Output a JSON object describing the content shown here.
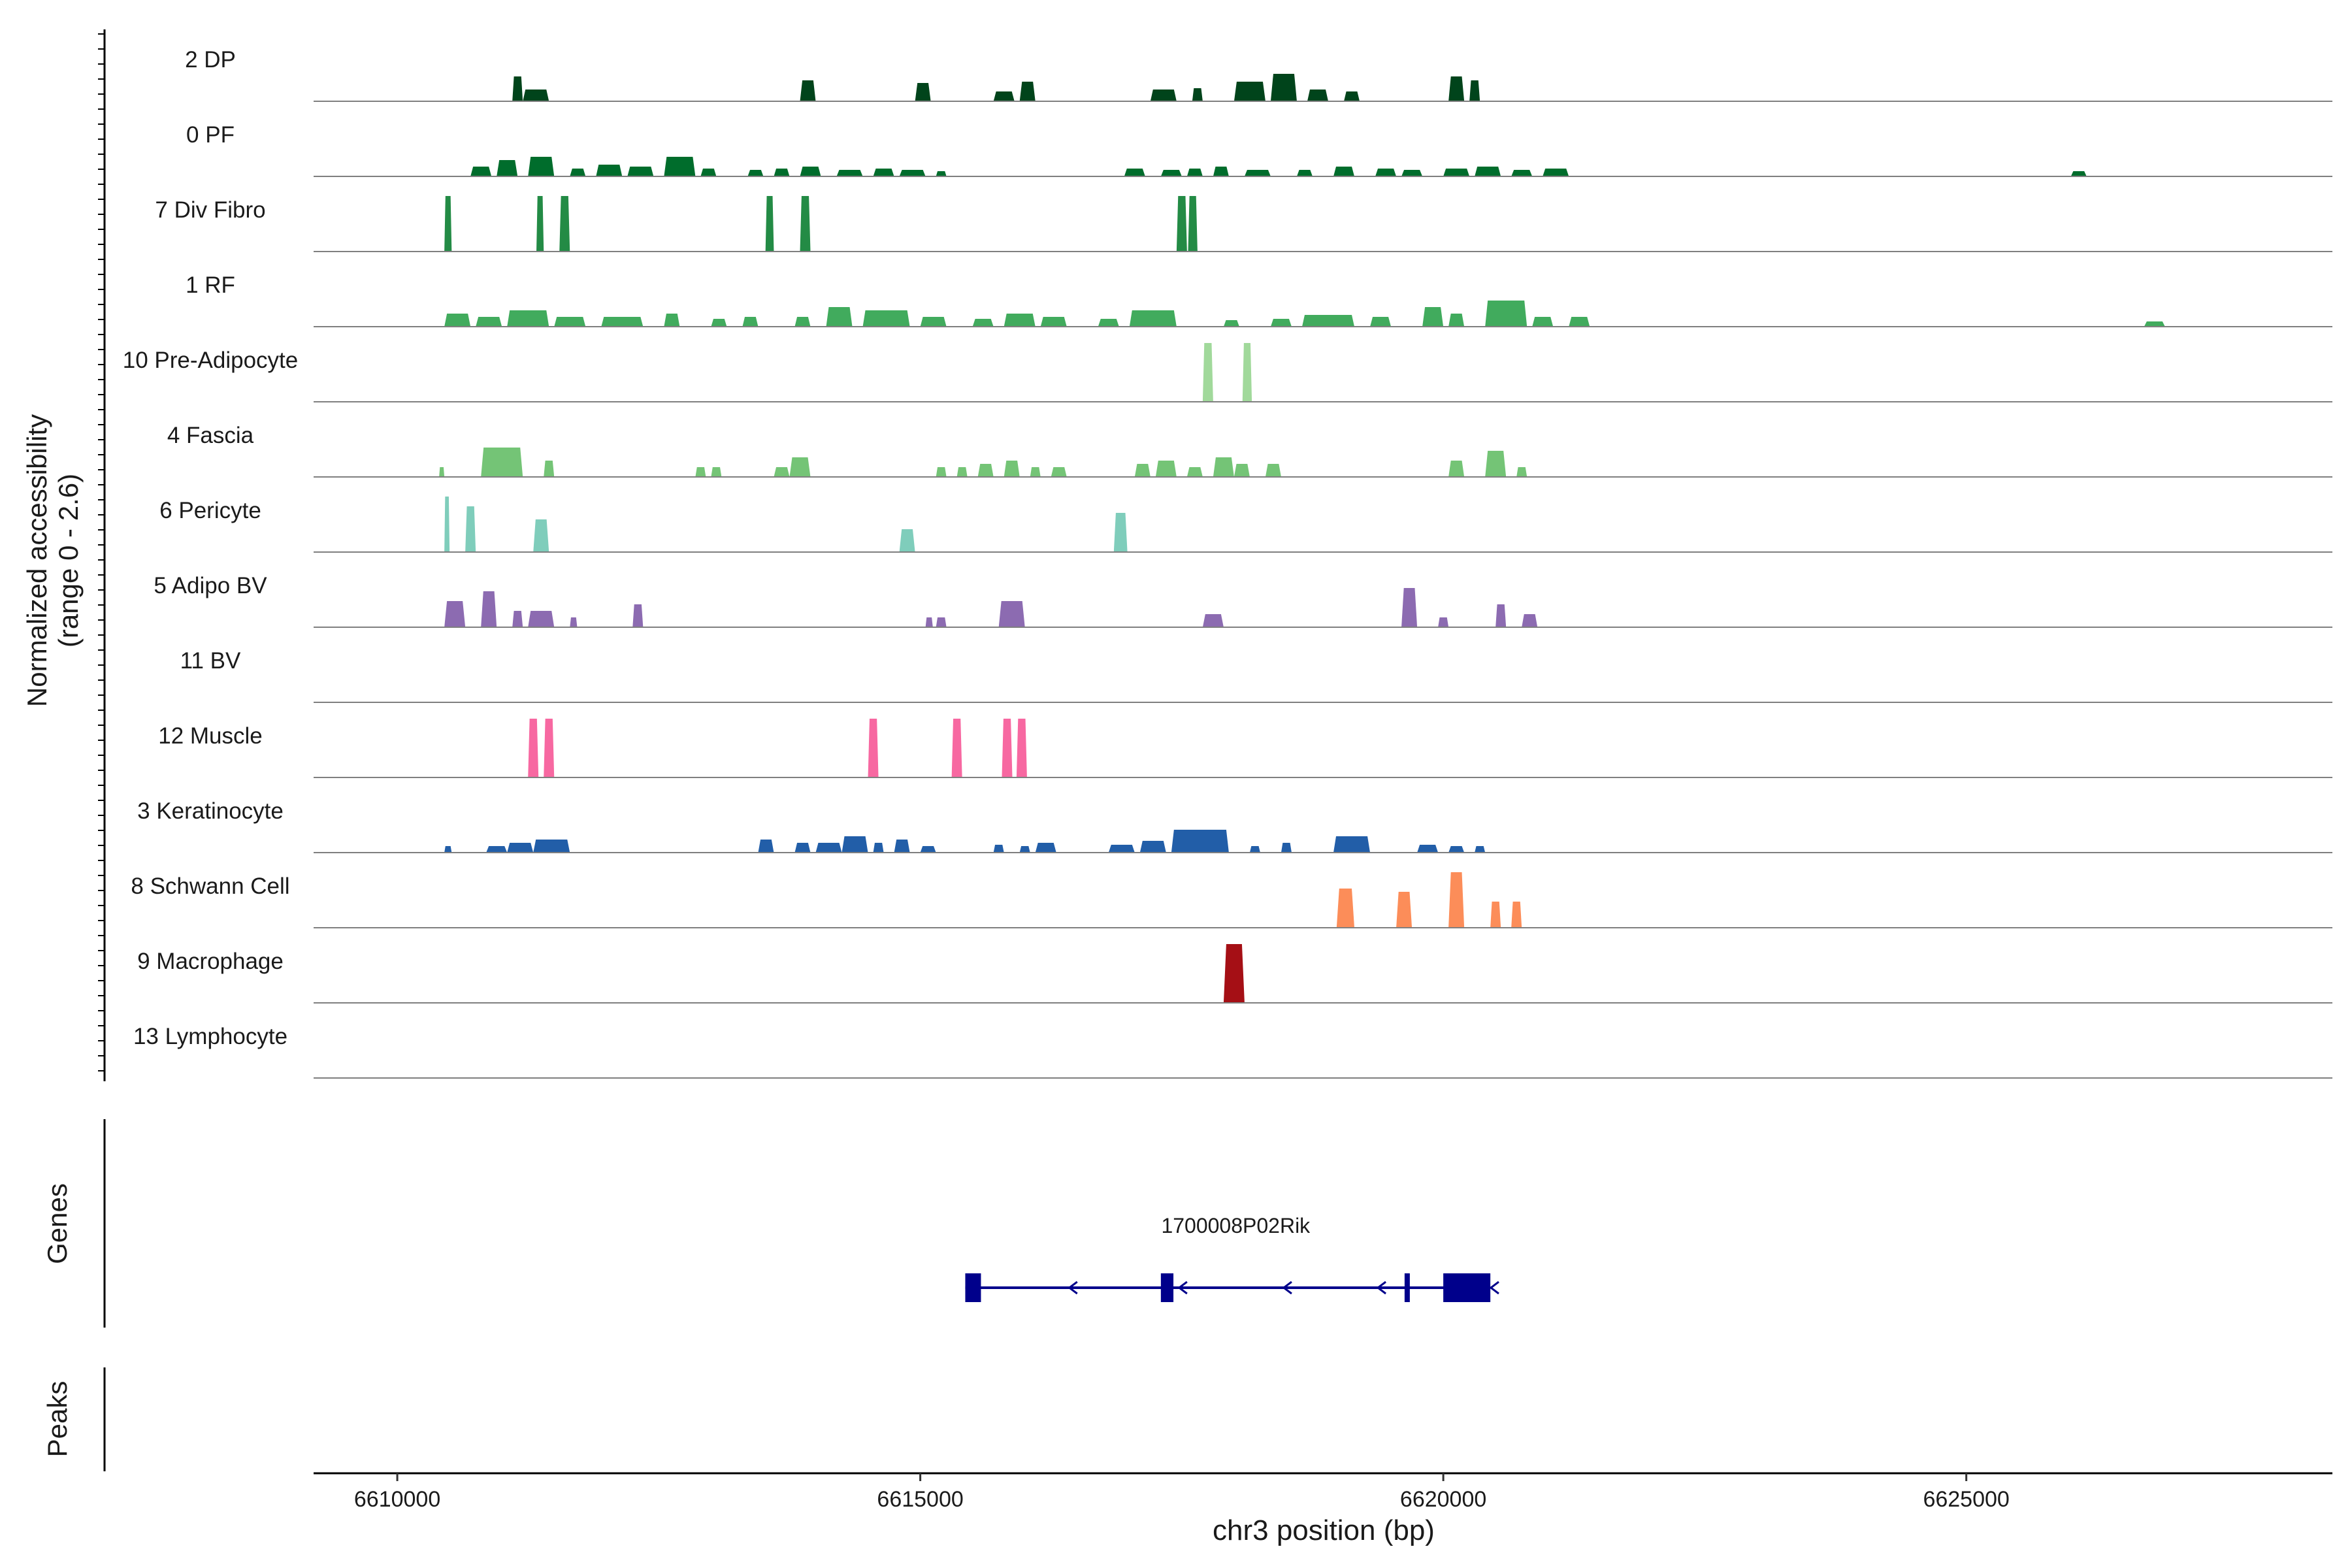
{
  "chart_data": {
    "type": "area",
    "title": "",
    "xlabel": "chr3 position (bp)",
    "ylabel": "Normalized accessibility",
    "ylabel_range": "(range 0 - 2.6)",
    "ylim": [
      0,
      2.6
    ],
    "xlim": [
      6609200,
      6628500
    ],
    "x_ticks": [
      6610000,
      6615000,
      6620000,
      6625000
    ],
    "x_tick_labels": [
      "6610000",
      "6615000",
      "6620000",
      "6625000"
    ],
    "genes_label": "Genes",
    "peaks_label": "Peaks",
    "tracks": [
      {
        "name": "2 DP",
        "color": "#00441b",
        "peaks": [
          [
            6611100,
            6611200,
            0.38
          ],
          [
            6611200,
            6611450,
            0.18
          ],
          [
            6613850,
            6614000,
            0.32
          ],
          [
            6614950,
            6615100,
            0.28
          ],
          [
            6615700,
            6615900,
            0.15
          ],
          [
            6615950,
            6616100,
            0.3
          ],
          [
            6617200,
            6617450,
            0.18
          ],
          [
            6617600,
            6617700,
            0.2
          ],
          [
            6618000,
            6618300,
            0.3
          ],
          [
            6618350,
            6618600,
            0.42
          ],
          [
            6618700,
            6618900,
            0.18
          ],
          [
            6619050,
            6619200,
            0.15
          ],
          [
            6620050,
            6620200,
            0.38
          ],
          [
            6620250,
            6620350,
            0.32
          ]
        ]
      },
      {
        "name": "0 PF",
        "color": "#006d2c",
        "peaks": [
          [
            6610700,
            6610900,
            0.15
          ],
          [
            6610950,
            6611150,
            0.25
          ],
          [
            6611250,
            6611500,
            0.3
          ],
          [
            6611650,
            6611800,
            0.12
          ],
          [
            6611900,
            6612150,
            0.18
          ],
          [
            6612200,
            6612450,
            0.15
          ],
          [
            6612550,
            6612850,
            0.3
          ],
          [
            6612900,
            6613050,
            0.12
          ],
          [
            6613350,
            6613500,
            0.1
          ],
          [
            6613600,
            6613750,
            0.12
          ],
          [
            6613850,
            6614050,
            0.15
          ],
          [
            6614200,
            6614450,
            0.1
          ],
          [
            6614550,
            6614750,
            0.12
          ],
          [
            6614800,
            6615050,
            0.1
          ],
          [
            6615150,
            6615250,
            0.08
          ],
          [
            6616950,
            6617150,
            0.12
          ],
          [
            6617300,
            6617500,
            0.1
          ],
          [
            6617550,
            6617700,
            0.12
          ],
          [
            6617800,
            6617950,
            0.15
          ],
          [
            6618100,
            6618350,
            0.1
          ],
          [
            6618600,
            6618750,
            0.1
          ],
          [
            6618950,
            6619150,
            0.15
          ],
          [
            6619350,
            6619550,
            0.12
          ],
          [
            6619600,
            6619800,
            0.1
          ],
          [
            6620000,
            6620250,
            0.12
          ],
          [
            6620300,
            6620550,
            0.15
          ],
          [
            6620650,
            6620850,
            0.1
          ],
          [
            6620950,
            6621200,
            0.12
          ],
          [
            6626000,
            6626150,
            0.08
          ]
        ]
      },
      {
        "name": "7 Div Fibro",
        "color": "#238b45",
        "peaks": [
          [
            6610450,
            6610520,
            0.85
          ],
          [
            6611330,
            6611400,
            0.85
          ],
          [
            6611550,
            6611650,
            0.85
          ],
          [
            6613520,
            6613600,
            0.85
          ],
          [
            6613850,
            6613950,
            0.85
          ],
          [
            6617450,
            6617550,
            0.85
          ],
          [
            6617560,
            6617650,
            0.85
          ]
        ]
      },
      {
        "name": "1 RF",
        "color": "#41ab5d",
        "peaks": [
          [
            6610450,
            6610700,
            0.2
          ],
          [
            6610750,
            6611000,
            0.15
          ],
          [
            6611050,
            6611450,
            0.25
          ],
          [
            6611500,
            6611800,
            0.15
          ],
          [
            6611950,
            6612350,
            0.15
          ],
          [
            6612550,
            6612700,
            0.2
          ],
          [
            6613000,
            6613150,
            0.12
          ],
          [
            6613300,
            6613450,
            0.15
          ],
          [
            6613800,
            6613950,
            0.15
          ],
          [
            6614100,
            6614350,
            0.3
          ],
          [
            6614450,
            6614900,
            0.25
          ],
          [
            6615000,
            6615250,
            0.15
          ],
          [
            6615500,
            6615700,
            0.12
          ],
          [
            6615800,
            6616100,
            0.2
          ],
          [
            6616150,
            6616400,
            0.15
          ],
          [
            6616700,
            6616900,
            0.12
          ],
          [
            6617000,
            6617450,
            0.25
          ],
          [
            6617900,
            6618050,
            0.1
          ],
          [
            6618350,
            6618550,
            0.12
          ],
          [
            6618650,
            6619150,
            0.18
          ],
          [
            6619300,
            6619500,
            0.15
          ],
          [
            6619800,
            6620000,
            0.3
          ],
          [
            6620050,
            6620200,
            0.2
          ],
          [
            6620400,
            6620800,
            0.4
          ],
          [
            6620850,
            6621050,
            0.15
          ],
          [
            6621200,
            6621400,
            0.15
          ],
          [
            6626700,
            6626900,
            0.08
          ]
        ]
      },
      {
        "name": "10 Pre-Adipocyte",
        "color": "#a1d99b",
        "peaks": [
          [
            6617700,
            6617800,
            0.9
          ],
          [
            6618080,
            6618170,
            0.9
          ]
        ]
      },
      {
        "name": "4 Fascia",
        "color": "#74c476",
        "peaks": [
          [
            6610400,
            6610450,
            0.15
          ],
          [
            6610800,
            6611200,
            0.45
          ],
          [
            6611400,
            6611500,
            0.25
          ],
          [
            6612850,
            6612950,
            0.15
          ],
          [
            6613000,
            6613100,
            0.15
          ],
          [
            6613600,
            6613750,
            0.15
          ],
          [
            6613750,
            6613950,
            0.3
          ],
          [
            6615150,
            6615250,
            0.15
          ],
          [
            6615350,
            6615450,
            0.15
          ],
          [
            6615550,
            6615700,
            0.2
          ],
          [
            6615800,
            6615950,
            0.25
          ],
          [
            6616050,
            6616150,
            0.15
          ],
          [
            6616250,
            6616400,
            0.15
          ],
          [
            6617050,
            6617200,
            0.2
          ],
          [
            6617250,
            6617450,
            0.25
          ],
          [
            6617550,
            6617700,
            0.15
          ],
          [
            6617800,
            6618000,
            0.3
          ],
          [
            6618000,
            6618150,
            0.2
          ],
          [
            6618300,
            6618450,
            0.2
          ],
          [
            6620050,
            6620200,
            0.25
          ],
          [
            6620400,
            6620600,
            0.4
          ],
          [
            6620700,
            6620800,
            0.15
          ]
        ]
      },
      {
        "name": "6 Pericyte",
        "color": "#7fcdbb",
        "peaks": [
          [
            6610450,
            6610500,
            0.85
          ],
          [
            6610650,
            6610750,
            0.7
          ],
          [
            6611300,
            6611450,
            0.5
          ],
          [
            6614800,
            6614950,
            0.35
          ],
          [
            6616850,
            6616980,
            0.6
          ]
        ]
      },
      {
        "name": "5 Adipo BV",
        "color": "#8c6bb1",
        "peaks": [
          [
            6610450,
            6610650,
            0.4
          ],
          [
            6610800,
            6610950,
            0.55
          ],
          [
            6611100,
            6611200,
            0.25
          ],
          [
            6611250,
            6611500,
            0.25
          ],
          [
            6611650,
            6611720,
            0.15
          ],
          [
            6612250,
            6612350,
            0.35
          ],
          [
            6615050,
            6615120,
            0.15
          ],
          [
            6615150,
            6615250,
            0.15
          ],
          [
            6615750,
            6616000,
            0.4
          ],
          [
            6617700,
            6617900,
            0.2
          ],
          [
            6619600,
            6619750,
            0.6
          ],
          [
            6619950,
            6620050,
            0.15
          ],
          [
            6620500,
            6620600,
            0.35
          ],
          [
            6620750,
            6620900,
            0.2
          ]
        ]
      },
      {
        "name": "11 BV",
        "color": "#6a51a3",
        "peaks": []
      },
      {
        "name": "12 Muscle",
        "color": "#f768a1",
        "peaks": [
          [
            6611250,
            6611350,
            0.9
          ],
          [
            6611400,
            6611500,
            0.9
          ],
          [
            6614500,
            6614600,
            0.9
          ],
          [
            6615300,
            6615400,
            0.9
          ],
          [
            6615780,
            6615880,
            0.9
          ],
          [
            6615920,
            6616020,
            0.9
          ]
        ]
      },
      {
        "name": "3 Keratinocyte",
        "color": "#225ea8",
        "peaks": [
          [
            6610450,
            6610520,
            0.1
          ],
          [
            6610850,
            6611050,
            0.1
          ],
          [
            6611050,
            6611300,
            0.15
          ],
          [
            6611300,
            6611650,
            0.2
          ],
          [
            6613450,
            6613600,
            0.2
          ],
          [
            6613800,
            6613950,
            0.15
          ],
          [
            6614000,
            6614250,
            0.15
          ],
          [
            6614250,
            6614500,
            0.25
          ],
          [
            6614550,
            6614650,
            0.15
          ],
          [
            6614750,
            6614900,
            0.2
          ],
          [
            6615000,
            6615150,
            0.1
          ],
          [
            6615700,
            6615800,
            0.12
          ],
          [
            6615950,
            6616050,
            0.1
          ],
          [
            6616100,
            6616300,
            0.15
          ],
          [
            6616800,
            6617050,
            0.12
          ],
          [
            6617100,
            6617350,
            0.18
          ],
          [
            6617400,
            6617950,
            0.35
          ],
          [
            6618150,
            6618250,
            0.1
          ],
          [
            6618450,
            6618550,
            0.15
          ],
          [
            6618950,
            6619300,
            0.25
          ],
          [
            6619750,
            6619950,
            0.12
          ],
          [
            6620050,
            6620200,
            0.1
          ],
          [
            6620300,
            6620400,
            0.1
          ]
        ]
      },
      {
        "name": "8 Schwann Cell",
        "color": "#fc8d59",
        "peaks": [
          [
            6618980,
            6619150,
            0.6
          ],
          [
            6619550,
            6619700,
            0.55
          ],
          [
            6620050,
            6620200,
            0.85
          ],
          [
            6620450,
            6620550,
            0.4
          ],
          [
            6620650,
            6620750,
            0.4
          ]
        ]
      },
      {
        "name": "9 Macrophage",
        "color": "#a50f15",
        "peaks": [
          [
            6617900,
            6618100,
            0.9
          ]
        ]
      },
      {
        "name": "13 Lymphocyte",
        "color": "#084594",
        "peaks": []
      }
    ],
    "gene": {
      "name": "1700008P02Rik",
      "strand": "-",
      "start": 6615430,
      "end": 6620450,
      "exons": [
        [
          6615430,
          6615580
        ],
        [
          6617300,
          6617420
        ],
        [
          6619630,
          6619680
        ],
        [
          6620000,
          6620450
        ]
      ],
      "arrows": [
        6616450,
        6617500,
        6618500,
        6619400,
        6620480
      ],
      "color": "#00008b"
    }
  }
}
